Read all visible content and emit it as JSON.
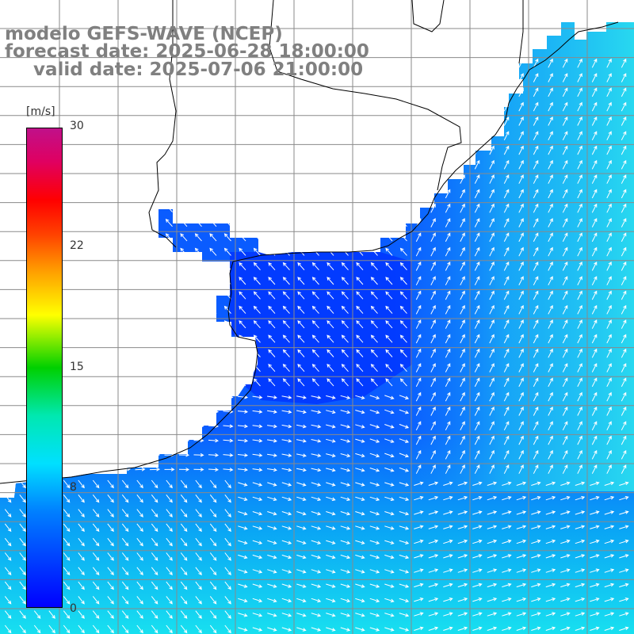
{
  "title": {
    "line1": "modelo GEFS-WAVE (NCEP)",
    "line2": "forecast date: 2025-06-28 18:00:00",
    "line3": "valid date: 2025-07-06 21:00:00"
  },
  "colorbar": {
    "unit": "[m/s]",
    "ticks": [
      "30",
      "22",
      "15",
      "8",
      "0"
    ],
    "tick_values": [
      30,
      22,
      15,
      8,
      0
    ],
    "range": [
      0,
      30
    ]
  },
  "map": {
    "field": "wind speed with direction arrows",
    "colors": {
      "land": "#ffffff",
      "grid": "#888888",
      "coast": "#000000",
      "arrow": "#ffffff"
    }
  }
}
